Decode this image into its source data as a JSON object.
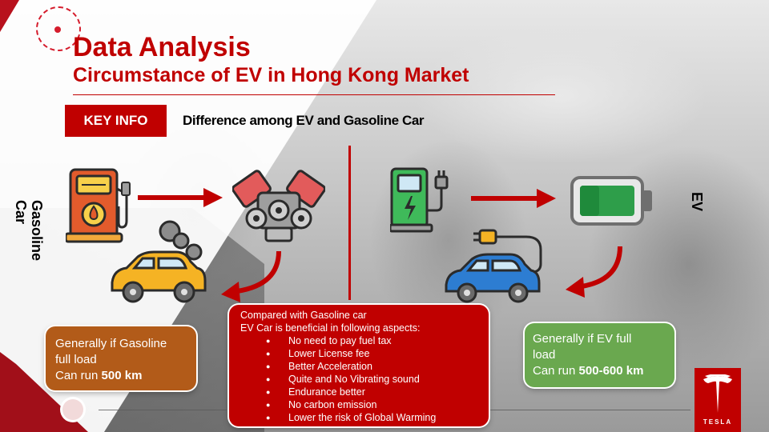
{
  "title": "Data Analysis",
  "subtitle": "Circumstance of EV in Hong Kong Market",
  "key_info": {
    "badge": "KEY INFO",
    "heading": "Difference among EV and Gasoline Car"
  },
  "labels": {
    "gasoline": "Gasoline Car",
    "ev": "EV"
  },
  "gasoline_box": {
    "line1": "Generally  if Gasoline",
    "line2": "full load",
    "line3_prefix": "Can run ",
    "line3_value": "500 km"
  },
  "ev_box": {
    "line1": "Generally  if EV full",
    "line2": "load",
    "line3_prefix": "Can run ",
    "line3_value": "500-600 km"
  },
  "comparison": {
    "intro1": "Compared with Gasoline car",
    "intro2": "EV Car is beneficial in following aspects:",
    "items": [
      "No need to pay fuel tax",
      "Lower License fee",
      "Better Acceleration",
      "Quite and No Vibrating sound",
      "Endurance better",
      "No carbon emission",
      "Lower the risk of Global Warming"
    ]
  },
  "logo_text": "TESLA",
  "colors": {
    "accent_red": "#c00000",
    "gas_box": "#b25b19",
    "ev_box": "#6aa84f"
  },
  "icons": [
    "fuel-pump-icon",
    "engine-icon",
    "smoke-car-icon",
    "ev-charger-icon",
    "battery-icon",
    "electric-car-icon",
    "tesla-logo-icon"
  ]
}
